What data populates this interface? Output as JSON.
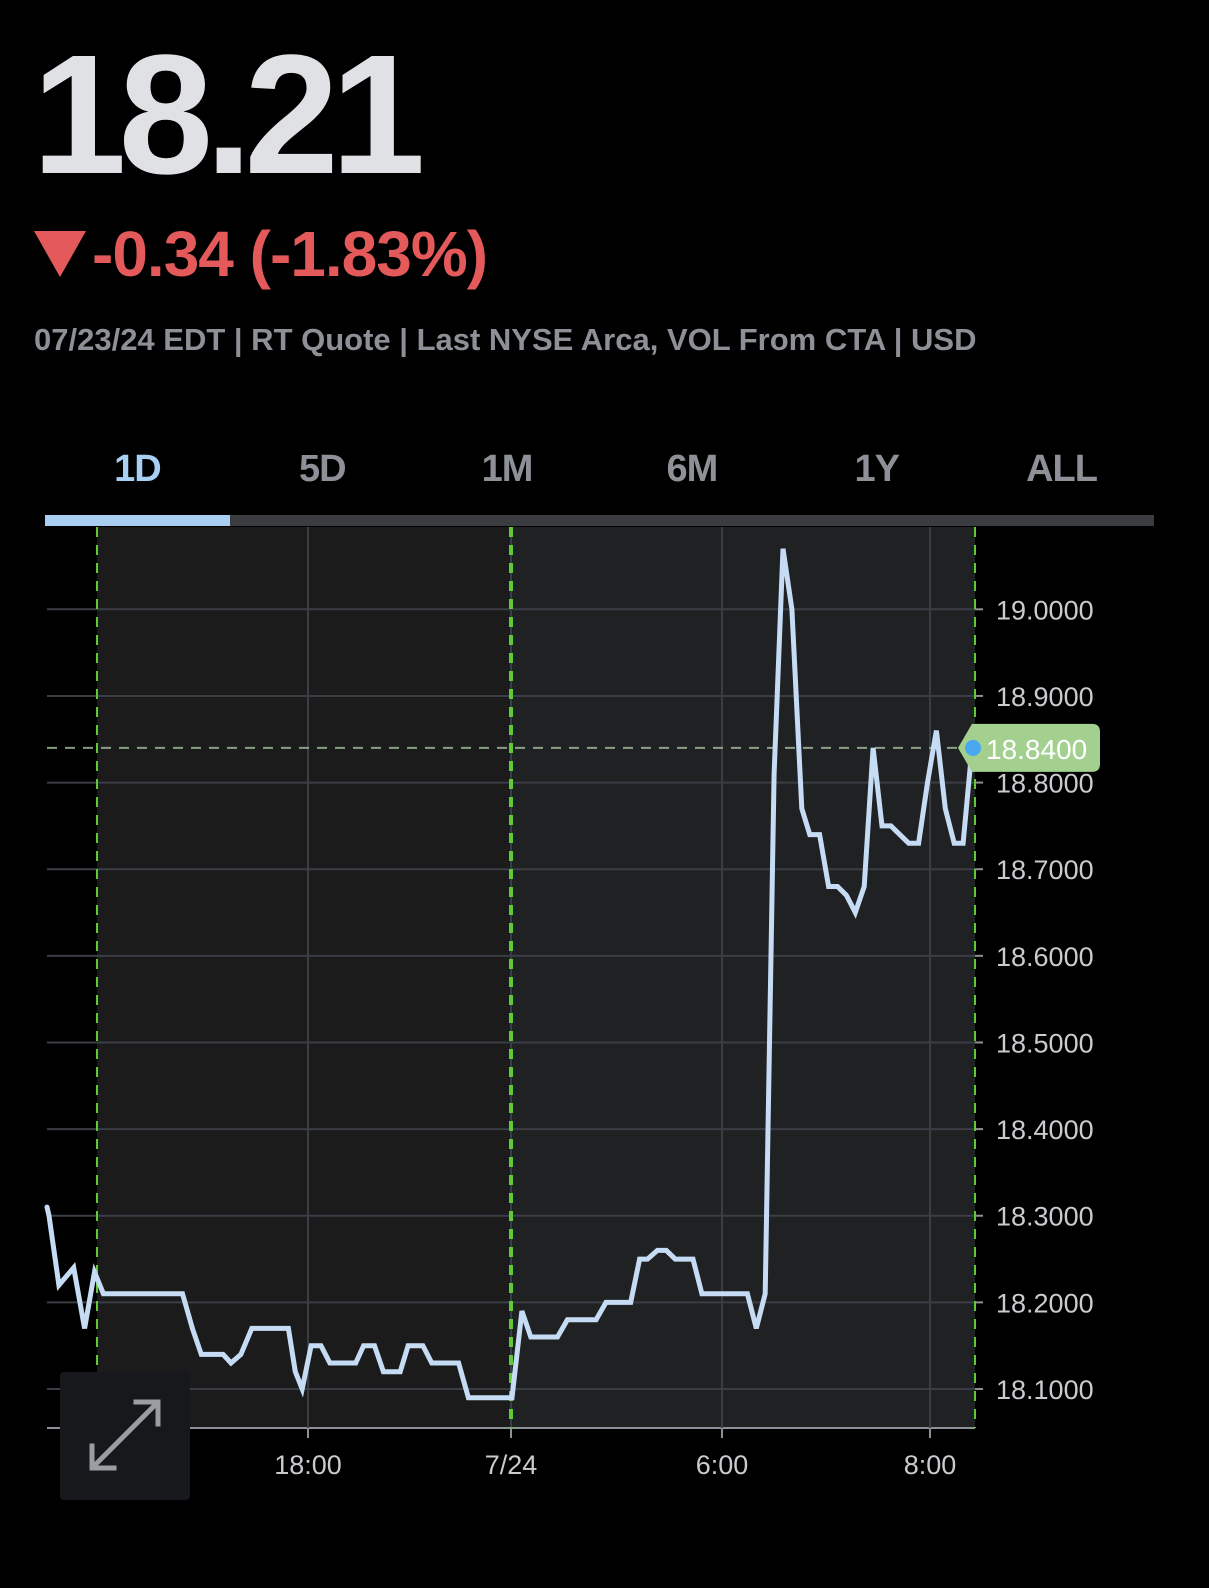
{
  "quote": {
    "price": "18.21",
    "change": "-0.34 (-1.83%)",
    "meta": "07/23/24 EDT | RT Quote | Last NYSE Arca, VOL From CTA | USD"
  },
  "tabs": [
    {
      "label": "1D",
      "active": true
    },
    {
      "label": "5D",
      "active": false
    },
    {
      "label": "1M",
      "active": false
    },
    {
      "label": "6M",
      "active": false
    },
    {
      "label": "1Y",
      "active": false
    },
    {
      "label": "ALL",
      "active": false
    }
  ],
  "colors": {
    "price_text": "#dfe1e5",
    "negative": "#e45a5a",
    "line": "#c6dcf5",
    "accent_tab": "#a8cff2",
    "session_marker": "#5fc93a",
    "last_price_badge": "#a4d08f",
    "grid": "#3a3d44"
  },
  "icons": {
    "expand": "expand-diagonal-arrows-icon",
    "change_direction": "down-triangle-icon"
  },
  "chart_data": {
    "type": "line",
    "y_ticks": [
      "19.0000",
      "18.9000",
      "18.8000",
      "18.7000",
      "18.6000",
      "18.5000",
      "18.4000",
      "18.3000",
      "18.2000",
      "18.1000"
    ],
    "x_ticks": [
      {
        "label": "18:00",
        "t": 5.0
      },
      {
        "label": "7/24",
        "t": 6.0
      },
      {
        "label": "6:00",
        "t": 6.25
      },
      {
        "label": "8:00",
        "t": 6.3333
      }
    ],
    "ylim": [
      18.055,
      19.095
    ],
    "last_price": {
      "label": "18.8400",
      "value": 18.84
    },
    "grid": true,
    "series": [
      {
        "values": [
          [
            2.74,
            18.31
          ],
          [
            2.76,
            18.3
          ],
          [
            2.86,
            18.22
          ],
          [
            3.01,
            18.24
          ],
          [
            3.12,
            18.17
          ],
          [
            3.22,
            18.235
          ],
          [
            3.31,
            18.21
          ],
          [
            4.11,
            18.21
          ],
          [
            4.21,
            18.17
          ],
          [
            4.3,
            18.14
          ],
          [
            4.52,
            18.14
          ],
          [
            4.6,
            18.13
          ],
          [
            4.7,
            18.14
          ],
          [
            4.81,
            18.17
          ],
          [
            5.18,
            18.17
          ],
          [
            5.25,
            18.12
          ],
          [
            5.32,
            18.1
          ],
          [
            5.41,
            18.15
          ],
          [
            5.51,
            18.15
          ],
          [
            5.6,
            18.13
          ],
          [
            5.86,
            18.13
          ],
          [
            5.94,
            18.15
          ],
          [
            6.05,
            18.15
          ],
          [
            6.14,
            18.12
          ],
          [
            6.31,
            18.12
          ],
          [
            6.39,
            18.15
          ],
          [
            6.54,
            18.15
          ],
          [
            6.63,
            18.13
          ],
          [
            6.9,
            18.13
          ],
          [
            7.0,
            18.09
          ],
          [
            7.44,
            18.09
          ],
          [
            7.54,
            18.19
          ],
          [
            7.63,
            18.16
          ],
          [
            7.9,
            18.16
          ],
          [
            8.0,
            18.18
          ],
          [
            8.29,
            18.18
          ],
          [
            8.39,
            18.2
          ],
          [
            8.64,
            18.2
          ],
          [
            8.73,
            18.25
          ],
          [
            8.81,
            18.25
          ],
          [
            8.91,
            18.26
          ],
          [
            9.0,
            18.26
          ],
          [
            9.09,
            18.25
          ],
          [
            9.27,
            18.25
          ],
          [
            9.36,
            18.21
          ],
          [
            9.82,
            18.21
          ],
          [
            9.91,
            18.17
          ],
          [
            10.0,
            18.21
          ],
          [
            10.09,
            18.81
          ],
          [
            10.18,
            19.07
          ],
          [
            10.27,
            19.0
          ],
          [
            10.37,
            18.77
          ],
          [
            10.45,
            18.74
          ],
          [
            10.55,
            18.74
          ],
          [
            10.64,
            18.68
          ],
          [
            10.73,
            18.68
          ],
          [
            10.82,
            18.67
          ],
          [
            10.91,
            18.65
          ],
          [
            11.0,
            18.68
          ],
          [
            11.09,
            18.84
          ],
          [
            11.18,
            18.75
          ],
          [
            11.27,
            18.75
          ],
          [
            11.36,
            18.74
          ],
          [
            11.45,
            18.73
          ],
          [
            11.55,
            18.73
          ],
          [
            11.64,
            18.8
          ],
          [
            11.73,
            18.86
          ],
          [
            11.82,
            18.77
          ],
          [
            11.91,
            18.73
          ],
          [
            12.0,
            18.73
          ],
          [
            12.09,
            18.84
          ]
        ]
      }
    ]
  }
}
